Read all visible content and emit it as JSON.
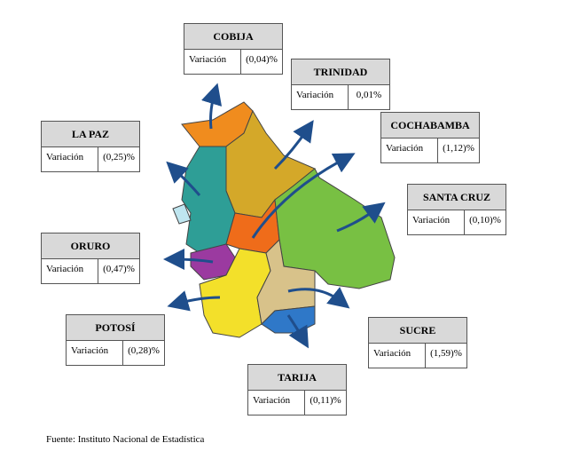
{
  "regions": [
    {
      "name": "COBIJA",
      "label": "Variación",
      "value": "(0,04)%"
    },
    {
      "name": "TRINIDAD",
      "label": "Variación",
      "value": "0,01%"
    },
    {
      "name": "COCHABAMBA",
      "label": "Variación",
      "value": "(1,12)%"
    },
    {
      "name": "SANTA CRUZ",
      "label": "Variación",
      "value": "(0,10)%"
    },
    {
      "name": "LA PAZ",
      "label": "Variación",
      "value": "(0,25)%"
    },
    {
      "name": "ORURO",
      "label": "Variación",
      "value": "(0,47)%"
    },
    {
      "name": "POTOSÍ",
      "label": "Variación",
      "value": "(0,28)%"
    },
    {
      "name": "SUCRE",
      "label": "Variación",
      "value": "(1,59)%"
    },
    {
      "name": "TARIJA",
      "label": "Variación",
      "value": "(0,11)%"
    }
  ],
  "source": "Fuente: Instituto Nacional de Estadística"
}
